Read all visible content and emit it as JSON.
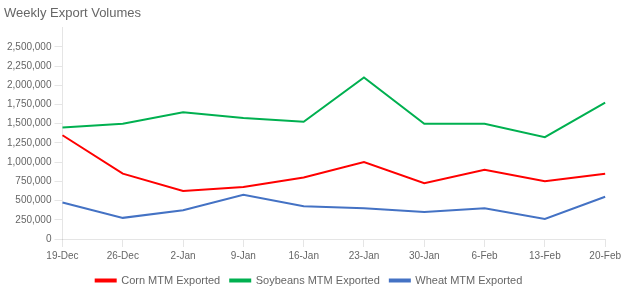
{
  "chart_data": {
    "type": "line",
    "title": "Weekly Export Volumes",
    "categories": [
      "19-Dec",
      "26-Dec",
      "2-Jan",
      "9-Jan",
      "16-Jan",
      "23-Jan",
      "30-Jan",
      "6-Feb",
      "13-Feb",
      "20-Feb"
    ],
    "series": [
      {
        "name": "Corn MTM Exported",
        "color": "#FF0000",
        "values": [
          1350000,
          850000,
          625000,
          675000,
          800000,
          1000000,
          725000,
          900000,
          750000,
          850000
        ]
      },
      {
        "name": "Soybeans MTM Exported",
        "color": "#00B050",
        "values": [
          1450000,
          1500000,
          1650000,
          1575000,
          1525000,
          2100000,
          1500000,
          1500000,
          1325000,
          1775000
        ]
      },
      {
        "name": "Wheat MTM Exported",
        "color": "#4472C4",
        "values": [
          475000,
          275000,
          375000,
          575000,
          425000,
          400000,
          350000,
          400000,
          260000,
          550000
        ]
      }
    ],
    "ylim": [
      0,
      2750000
    ],
    "yticks": [
      0,
      {
        "value": 250000,
        "label": "250,000"
      },
      {
        "value": 500000,
        "label": "500,000"
      },
      {
        "value": 750000,
        "label": "750,000"
      },
      {
        "value": 1000000,
        "label": "1,000,000"
      },
      {
        "value": 1250000,
        "label": "1,250,000"
      },
      {
        "value": 1500000,
        "label": "1,500,000"
      },
      {
        "value": 1750000,
        "label": "1,750,000"
      },
      {
        "value": 2000000,
        "label": "2,000,000"
      },
      {
        "value": 2250000,
        "label": "2,250,000"
      },
      {
        "value": 2500000,
        "label": "2,500,000"
      }
    ],
    "grid": false,
    "legend": "bottom"
  }
}
